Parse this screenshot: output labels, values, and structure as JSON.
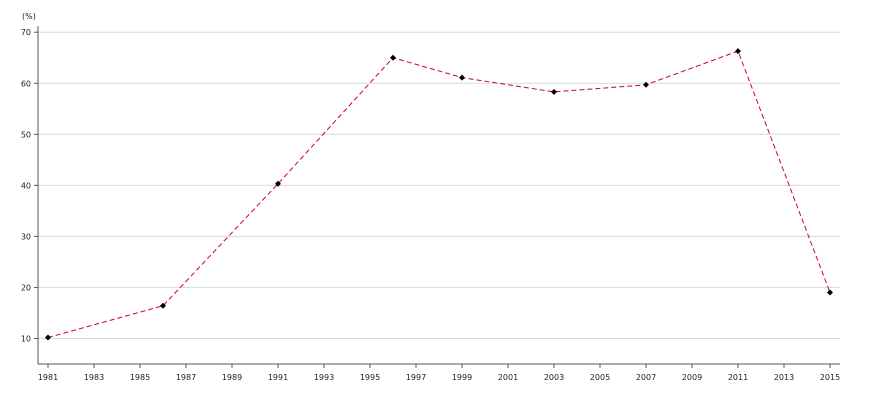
{
  "chart_data": {
    "type": "line",
    "title": "",
    "xlabel": "",
    "ylabel": "",
    "unit_label": "(%)",
    "x_ticks": [
      "1981",
      "1983",
      "1985",
      "1987",
      "1989",
      "1991",
      "1993",
      "1995",
      "1997",
      "1999",
      "2001",
      "2003",
      "2005",
      "2007",
      "2009",
      "2011",
      "2013",
      "2015"
    ],
    "y_ticks": [
      10,
      20,
      30,
      40,
      50,
      60,
      70
    ],
    "xlim": [
      1981,
      2015
    ],
    "ylim": [
      5,
      72
    ],
    "grid": "horizontal",
    "legend": "none",
    "series": [
      {
        "color": "#cc0033",
        "marker_color": "#000000",
        "line_style": "dashed",
        "x": [
          1981,
          1986,
          1991,
          1996,
          1999,
          2003,
          2007,
          2011,
          2015
        ],
        "values": [
          10.2,
          16.4,
          40.3,
          65.0,
          61.1,
          58.3,
          59.7,
          66.3,
          19.0
        ]
      }
    ]
  }
}
